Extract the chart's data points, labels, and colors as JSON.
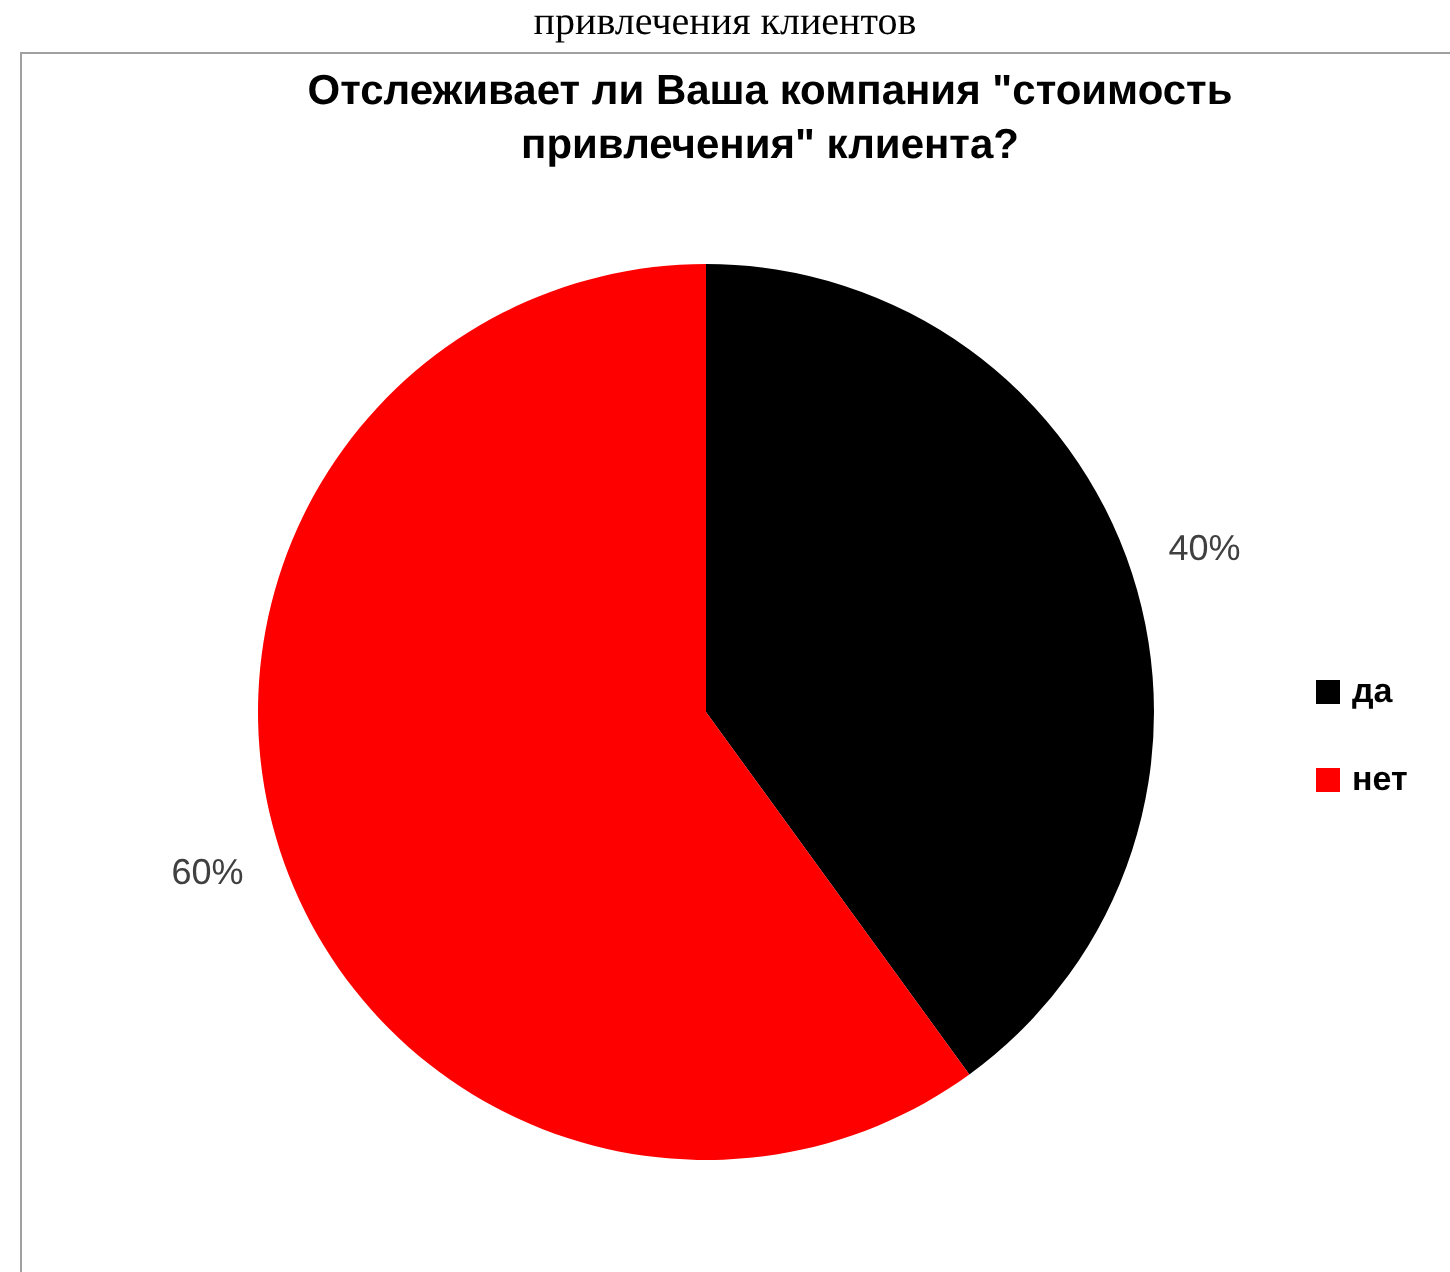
{
  "chart_data": {
    "type": "pie",
    "title": "Отслеживает ли Ваша компания \"стоимость привлечения\" клиента?",
    "annotations": [
      "привлечения клиентов"
    ],
    "categories": [
      "да",
      "нет"
    ],
    "values": [
      40,
      60
    ],
    "colors": [
      "#000000",
      "#ff0000"
    ],
    "value_labels": [
      "40%",
      "60%"
    ],
    "legend": "right"
  }
}
